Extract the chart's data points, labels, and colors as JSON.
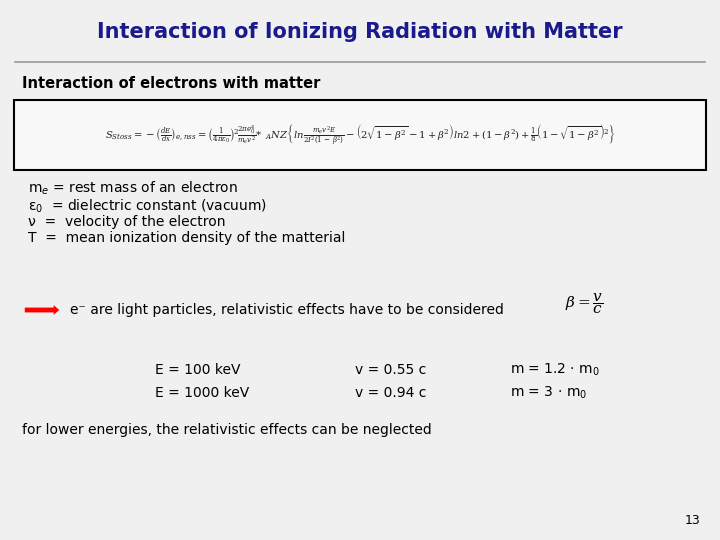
{
  "title": "Interaction of Ionizing Radiation with Matter",
  "title_color": "#1a1a8c",
  "subtitle": "Interaction of electrons with matter",
  "background_color": "#f0f0f0",
  "definitions": [
    "m$_e$ = rest mass of an electron",
    "ε$_0$  = dielectric constant (vacuum)",
    "ν  =  velocity of the electron",
    "T  =  mean ionization density of the matterial"
  ],
  "arrow_text": "e⁻ are light particles, relativistic effects have to be considered",
  "table_rows": [
    [
      "E = 100 keV",
      "v = 0.55 c",
      "m = 1.2 · m$_0$"
    ],
    [
      "E = 1000 keV",
      "v = 0.94 c",
      "m = 3 · m$_0$"
    ]
  ],
  "footer": "for lower energies, the relativistic effects can be neglected",
  "page_number": "13"
}
